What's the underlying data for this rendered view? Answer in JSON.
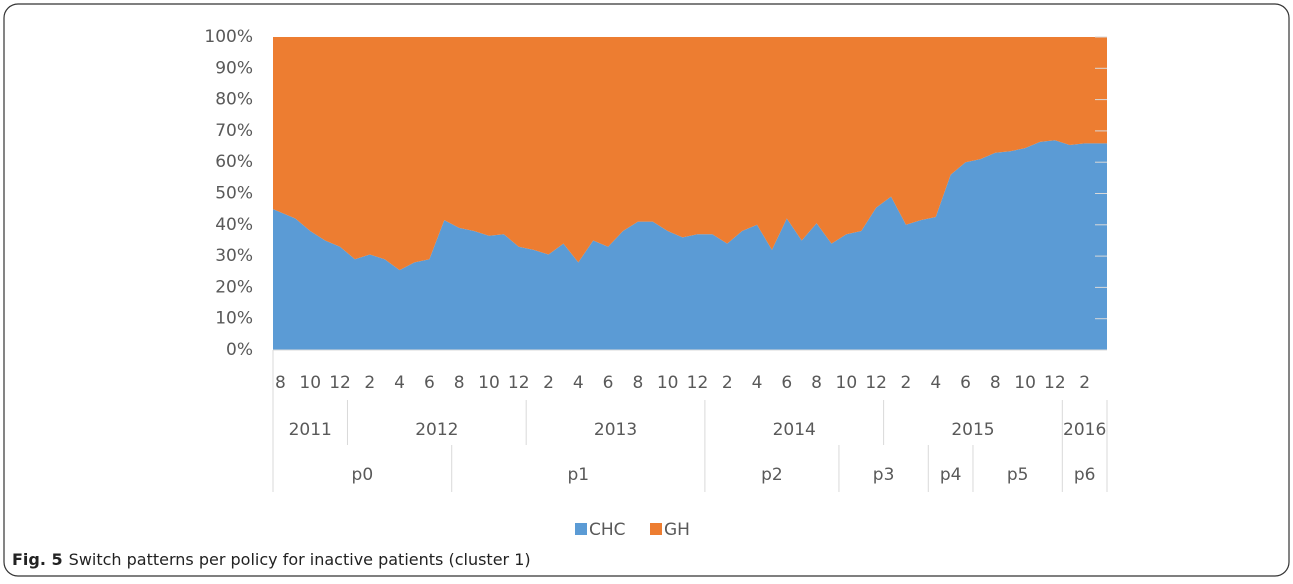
{
  "chart_data": {
    "type": "stacked_area",
    "categories": [
      "8",
      null,
      "10",
      null,
      "12",
      null,
      "2",
      null,
      "4",
      null,
      "6",
      null,
      "8",
      null,
      "10",
      null,
      "12",
      null,
      "2",
      null,
      "4",
      null,
      "6",
      null,
      "8",
      null,
      "10",
      null,
      "12",
      null,
      "2",
      null,
      "4",
      null,
      "6",
      null,
      "8",
      null,
      "10",
      null,
      "12",
      null,
      "2",
      null,
      "4",
      null,
      "6",
      null,
      "8",
      null,
      "10",
      null,
      "12",
      null,
      "2",
      null
    ],
    "year_groups": [
      {
        "label": "2011",
        "count": 5
      },
      {
        "label": "2012",
        "count": 12
      },
      {
        "label": "2013",
        "count": 12
      },
      {
        "label": "2014",
        "count": 12
      },
      {
        "label": "2015",
        "count": 12
      },
      {
        "label": "2016",
        "count": 3
      }
    ],
    "policy_groups": [
      {
        "label": "p0",
        "count": 12
      },
      {
        "label": "p1",
        "count": 17
      },
      {
        "label": "p2",
        "count": 9
      },
      {
        "label": "p3",
        "count": 6
      },
      {
        "label": "p4",
        "count": 3
      },
      {
        "label": "p5",
        "count": 6
      },
      {
        "label": "p6",
        "count": 3
      }
    ],
    "series": [
      {
        "name": "CHC",
        "color": "#5b9bd5",
        "values": [
          45,
          42,
          38,
          35,
          33,
          29,
          30.5,
          29,
          25.5,
          28,
          29,
          41.5,
          39,
          38,
          36.5,
          37,
          33,
          32,
          30.5,
          34,
          28,
          35,
          33,
          38,
          41,
          41,
          38,
          36,
          37,
          37,
          34,
          38,
          40,
          32,
          42,
          35,
          40.5,
          34,
          37,
          38,
          45.5,
          49,
          40,
          41.5,
          42.5,
          56,
          60,
          61,
          63,
          63.5,
          64.5,
          66.5,
          67,
          65.5,
          66,
          66
        ]
      },
      {
        "name": "GH",
        "color": "#ed7d31",
        "values": [
          55,
          58,
          62,
          65,
          67,
          71,
          69.5,
          71,
          74.5,
          72,
          71,
          58.5,
          61,
          62,
          63.5,
          63,
          67,
          68,
          69.5,
          66,
          72,
          65,
          67,
          62,
          59,
          59,
          62,
          64,
          63,
          63,
          66,
          62,
          60,
          68,
          58,
          65,
          59.5,
          66,
          63,
          62,
          54.5,
          51,
          60,
          58.5,
          57.5,
          44,
          40,
          39,
          37,
          36.5,
          35.5,
          33.5,
          33,
          34.5,
          34,
          34
        ]
      }
    ],
    "ylim": [
      0,
      100
    ],
    "yticks": [
      {
        "value": 0,
        "label": "0%"
      },
      {
        "value": 10,
        "label": "10%"
      },
      {
        "value": 20,
        "label": "20%"
      },
      {
        "value": 30,
        "label": "30%"
      },
      {
        "value": 40,
        "label": "40%"
      },
      {
        "value": 50,
        "label": "50%"
      },
      {
        "value": 60,
        "label": "60%"
      },
      {
        "value": 70,
        "label": "70%"
      },
      {
        "value": 80,
        "label": "80%"
      },
      {
        "value": 90,
        "label": "90%"
      },
      {
        "value": 100,
        "label": "100%"
      }
    ],
    "grid": true,
    "legend": "bottom",
    "caption_label": "Fig. 5",
    "caption_text": "Switch patterns per policy for inactive patients (cluster 1)"
  }
}
